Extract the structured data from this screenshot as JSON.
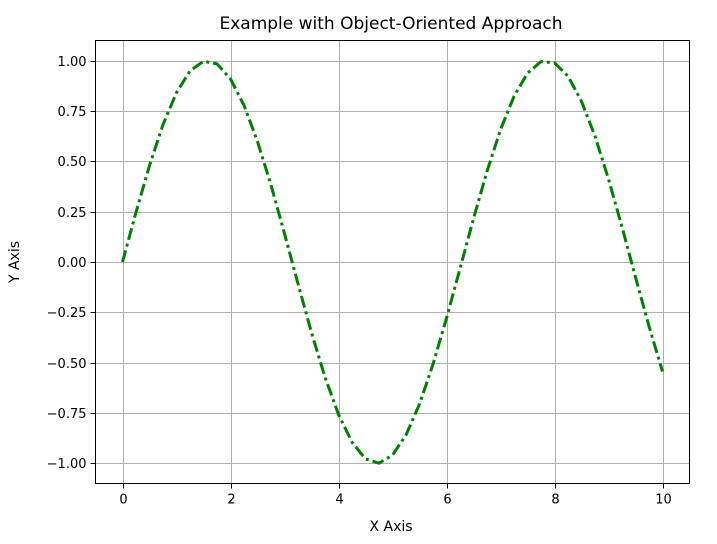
{
  "chart_data": {
    "type": "line",
    "title": "Example with Object-Oriented Approach",
    "xlabel": "X Axis",
    "ylabel": "Y Axis",
    "xlim": [
      -0.5,
      10.5
    ],
    "ylim": [
      -1.1,
      1.1
    ],
    "xticks": [
      0,
      2,
      4,
      6,
      8,
      10
    ],
    "xtick_labels": [
      "0",
      "2",
      "4",
      "6",
      "8",
      "10"
    ],
    "yticks": [
      1.0,
      0.75,
      0.5,
      0.25,
      0.0,
      -0.25,
      -0.5,
      -0.75,
      -1.0
    ],
    "ytick_labels": [
      "1.00",
      "0.75",
      "0.50",
      "0.25",
      "0.00",
      "−0.25",
      "−0.50",
      "−0.75",
      "−1.00"
    ],
    "grid": true,
    "series": [
      {
        "line_color": "#008000",
        "line_style": "dash-dot",
        "x": [
          0.0,
          0.25,
          0.5,
          0.75,
          1.0,
          1.25,
          1.5,
          1.75,
          2.0,
          2.25,
          2.5,
          2.75,
          3.0,
          3.25,
          3.5,
          3.75,
          4.0,
          4.25,
          4.5,
          4.75,
          5.0,
          5.25,
          5.5,
          5.75,
          6.0,
          6.25,
          6.5,
          6.75,
          7.0,
          7.25,
          7.5,
          7.75,
          8.0,
          8.25,
          8.5,
          8.75,
          9.0,
          9.25,
          9.5,
          9.75,
          10.0
        ],
        "y": [
          0.0,
          0.247,
          0.479,
          0.682,
          0.841,
          0.949,
          0.997,
          0.984,
          0.909,
          0.778,
          0.598,
          0.382,
          0.141,
          -0.108,
          -0.351,
          -0.572,
          -0.757,
          -0.895,
          -0.978,
          -0.999,
          -0.959,
          -0.859,
          -0.706,
          -0.508,
          -0.279,
          -0.033,
          0.215,
          0.45,
          0.657,
          0.823,
          0.938,
          0.995,
          0.989,
          0.923,
          0.798,
          0.625,
          0.412,
          0.174,
          -0.075,
          -0.319,
          -0.544
        ]
      }
    ]
  }
}
